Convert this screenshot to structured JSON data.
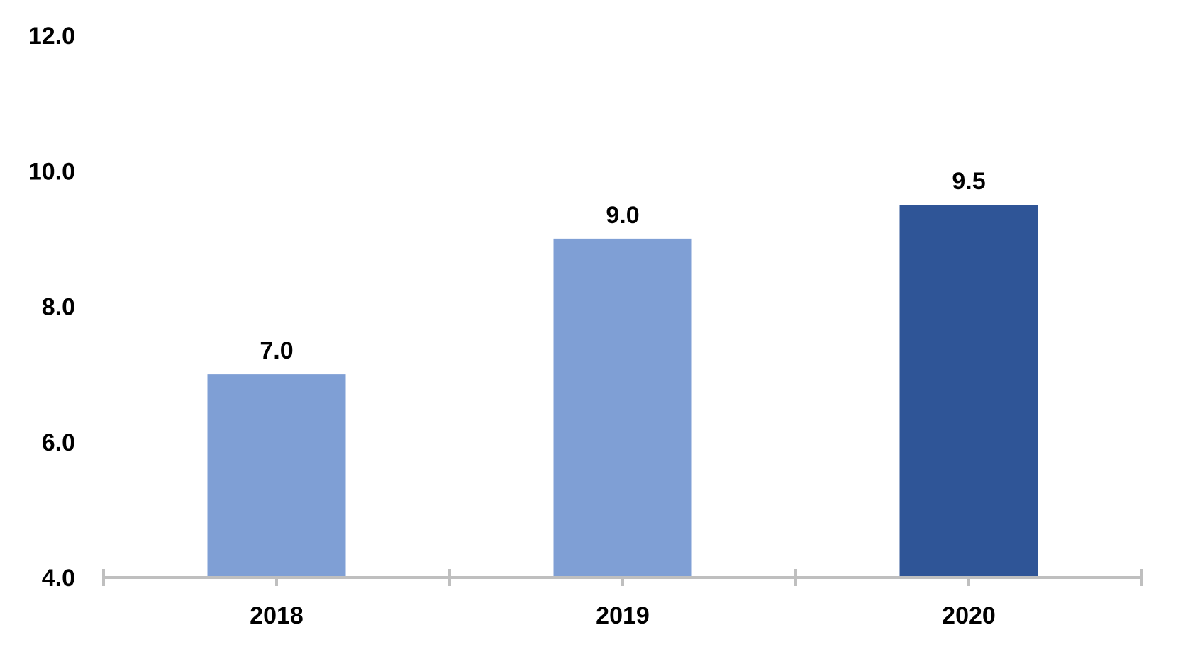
{
  "chart_data": {
    "type": "bar",
    "title": "",
    "xlabel": "",
    "ylabel": "",
    "categories": [
      "2018",
      "2019",
      "2020"
    ],
    "values": [
      7.0,
      9.0,
      9.5
    ],
    "data_labels": [
      "7.0",
      "9.0",
      "9.5"
    ],
    "bar_colors": [
      "#7f9fd5",
      "#7f9fd5",
      "#2f5597"
    ],
    "ylim": [
      4.0,
      12.0
    ],
    "yticks": [
      {
        "value": 4.0,
        "label": "4.0"
      },
      {
        "value": 6.0,
        "label": "6.0"
      },
      {
        "value": 8.0,
        "label": "8.0"
      },
      {
        "value": 10.0,
        "label": "10.0"
      },
      {
        "value": 12.0,
        "label": "12.0"
      }
    ],
    "grid": false,
    "legend": "none",
    "axis_color": "#bfbfbf",
    "frame_color": "#d9d9d9"
  }
}
